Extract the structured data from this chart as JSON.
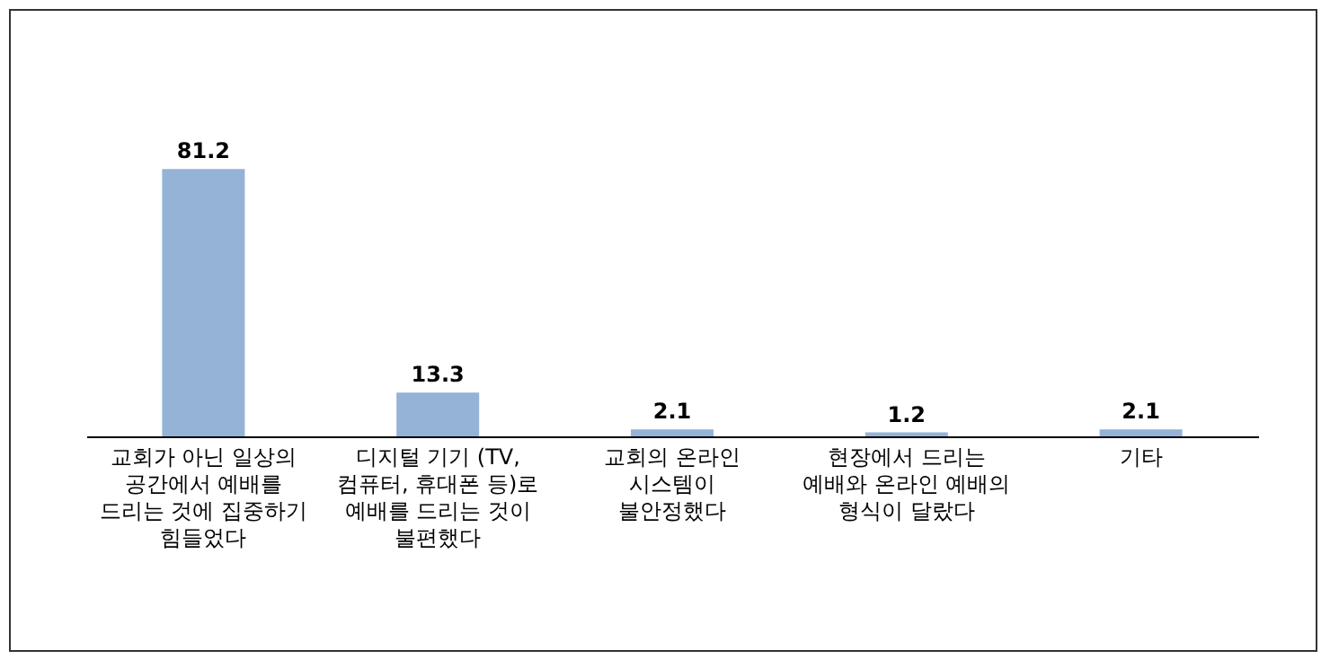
{
  "chart_data": {
    "type": "bar",
    "categories": [
      "교회가 아닌 일상의\n공간에서 예배를\n드리는 것에 집중하기\n힘들었다",
      "디지털 기기 (TV,\n컴퓨터, 휴대폰 등)로\n예배를 드리는 것이\n불편했다",
      "교회의 온라인\n시스템이\n불안정했다",
      "현장에서 드리는\n예배와 온라인 예배의\n형식이 달랐다",
      "기타"
    ],
    "values": [
      81.2,
      13.3,
      2.1,
      1.2,
      2.1
    ],
    "color": "#95b3d7",
    "data_labels": true,
    "tick_labels": "x",
    "grid": false
  }
}
